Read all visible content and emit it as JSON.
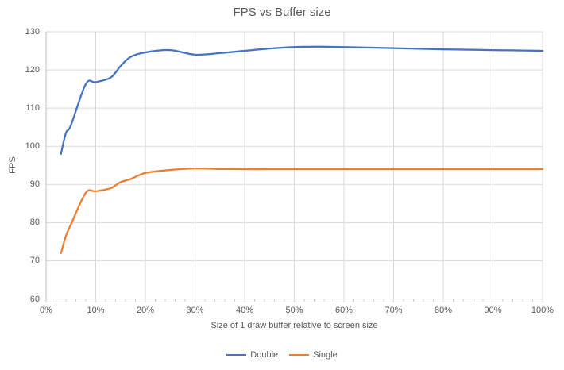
{
  "chart_data": {
    "type": "line",
    "title": "FPS vs Buffer size",
    "xlabel": "Size of 1 draw buffer relative to screen size",
    "ylabel": "FPS",
    "x_unit": "percent of screen size",
    "x": [
      3,
      4,
      5,
      8,
      10,
      13,
      15,
      17,
      20,
      25,
      30,
      35,
      40,
      45,
      50,
      55,
      60,
      70,
      80,
      90,
      100
    ],
    "series": [
      {
        "name": "Double",
        "color": "#4472C4",
        "values": [
          98,
          103.5,
          105.5,
          116.3,
          116.8,
          118,
          121,
          123.4,
          124.6,
          125.2,
          124.0,
          124.4,
          125.0,
          125.6,
          126.0,
          126.1,
          126.0,
          125.7,
          125.4,
          125.2,
          125
        ]
      },
      {
        "name": "Single",
        "color": "#ED7D31",
        "values": [
          72,
          76.5,
          79.5,
          87.8,
          88.2,
          89,
          90.6,
          91.4,
          93.0,
          93.8,
          94.2,
          94.05,
          94,
          94,
          94,
          94,
          94,
          94,
          94,
          94,
          94
        ]
      }
    ],
    "xlim": [
      0,
      100
    ],
    "ylim": [
      60,
      130
    ],
    "y_ticks": [
      60,
      70,
      80,
      90,
      100,
      110,
      120,
      130
    ],
    "x_ticks": [
      {
        "value": 0,
        "label": "0%"
      },
      {
        "value": 10,
        "label": "10%"
      },
      {
        "value": 20,
        "label": "20%"
      },
      {
        "value": 30,
        "label": "30%"
      },
      {
        "value": 40,
        "label": "40%"
      },
      {
        "value": 50,
        "label": "50%"
      },
      {
        "value": 60,
        "label": "60%"
      },
      {
        "value": 70,
        "label": "70%"
      },
      {
        "value": 80,
        "label": "80%"
      },
      {
        "value": 90,
        "label": "90%"
      },
      {
        "value": 100,
        "label": "100%"
      }
    ],
    "minor_tick_step": 2,
    "grid": true,
    "smooth": true,
    "legend_position": "bottom",
    "colors": {
      "grid": "#D9D9D9",
      "axis": "#BFBFBF",
      "text": "#595959",
      "background": "#FFFFFF"
    }
  }
}
